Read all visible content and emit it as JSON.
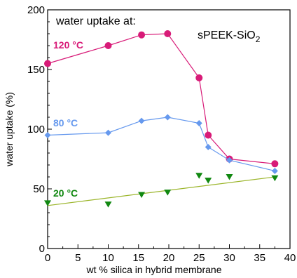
{
  "chart_data": {
    "type": "line",
    "title": "",
    "xlabel": "wt % silica in hybrid membrane",
    "ylabel": "water uptake (%)",
    "xlim": [
      0,
      40
    ],
    "ylim": [
      0,
      200
    ],
    "xticks": [
      0,
      5,
      10,
      15,
      20,
      25,
      30,
      35,
      40
    ],
    "yticks": [
      0,
      50,
      100,
      150,
      200
    ],
    "grid": false,
    "legend_title": "water uptake at:",
    "annotation_main": "sPEEK-SiO",
    "annotation_sub": "2",
    "series": [
      {
        "name": "120 °C",
        "color": "#d81b78",
        "marker": "circle",
        "x": [
          0,
          10,
          15.5,
          19.8,
          25,
          26.5,
          30,
          37.5
        ],
        "y": [
          155,
          170,
          179,
          180,
          143,
          95,
          75,
          71
        ]
      },
      {
        "name": "80 °C",
        "color": "#6699ee",
        "marker": "diamond",
        "x": [
          0,
          10,
          15.5,
          19.8,
          25,
          26.5,
          30,
          37.5
        ],
        "y": [
          95,
          97,
          107,
          110,
          105,
          85,
          74,
          65
        ]
      },
      {
        "name": "20 °C",
        "color": "#118811",
        "marker": "triangle-down",
        "line_color": "#9bb52a",
        "x": [
          0,
          10,
          15.5,
          19.8,
          25,
          26.5,
          30,
          37.5
        ],
        "y": [
          38,
          37,
          45,
          47,
          61,
          57,
          60,
          59
        ],
        "fit": {
          "x": [
            0,
            37.5
          ],
          "y": [
            36,
            60
          ]
        }
      }
    ]
  }
}
